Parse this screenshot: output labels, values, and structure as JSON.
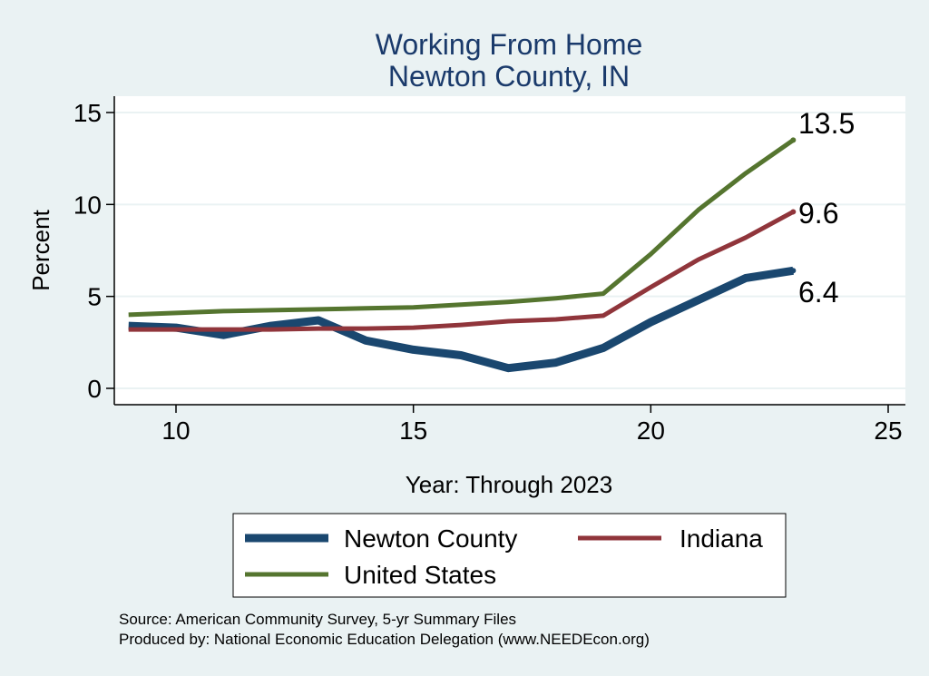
{
  "chart_data": {
    "type": "line",
    "title": "Working From Home",
    "subtitle": "Newton County, IN",
    "xlabel": "Year: Through 2023",
    "ylabel": "Percent",
    "xlim": [
      9,
      25
    ],
    "ylim": [
      0,
      15
    ],
    "x_ticks": [
      10,
      15,
      20,
      25
    ],
    "y_ticks": [
      0,
      5,
      10,
      15
    ],
    "grid": true,
    "legend_position": "bottom",
    "x": [
      9,
      10,
      11,
      12,
      13,
      14,
      15,
      16,
      17,
      18,
      19,
      20,
      21,
      22,
      23
    ],
    "series": [
      {
        "name": "Newton County",
        "color": "#1a476f",
        "values": [
          3.4,
          3.3,
          2.9,
          3.4,
          3.7,
          2.6,
          2.1,
          1.8,
          1.1,
          1.4,
          2.2,
          3.6,
          4.8,
          6.0,
          6.4
        ],
        "end_label": "6.4"
      },
      {
        "name": "Indiana",
        "color": "#90353b",
        "values": [
          3.2,
          3.2,
          3.2,
          3.2,
          3.25,
          3.25,
          3.3,
          3.45,
          3.65,
          3.75,
          3.95,
          5.5,
          7.0,
          8.2,
          9.6
        ],
        "end_label": "9.6"
      },
      {
        "name": "United States",
        "color": "#55752f",
        "values": [
          4.0,
          4.1,
          4.2,
          4.25,
          4.3,
          4.35,
          4.4,
          4.55,
          4.7,
          4.9,
          5.15,
          7.3,
          9.7,
          11.7,
          13.5
        ],
        "end_label": "13.5"
      }
    ]
  },
  "source_note": "Source: American Community Survey, 5-yr Summary Files",
  "produced_note": "Produced by: National Economic Education Delegation (www.NEEDEcon.org)"
}
